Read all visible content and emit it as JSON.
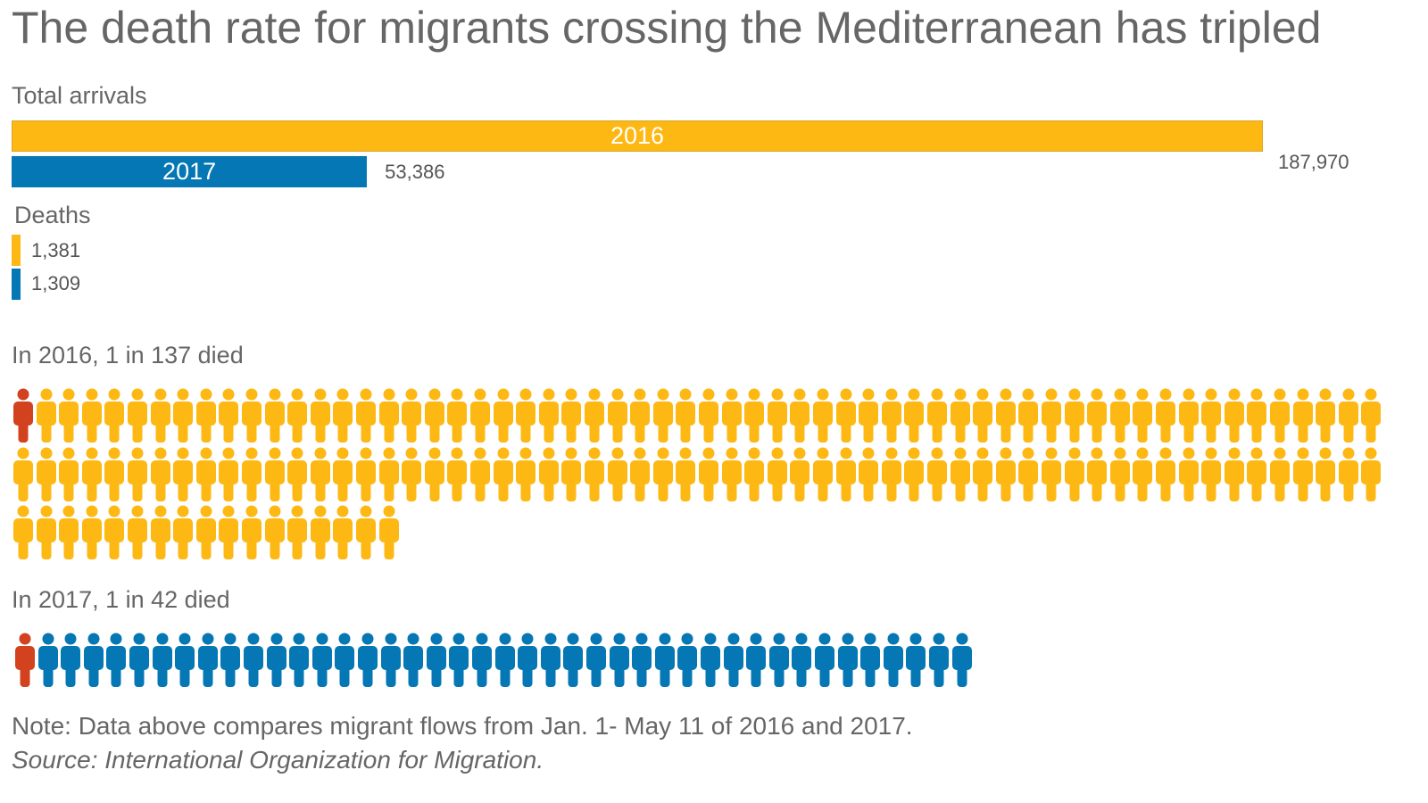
{
  "chart_data": {
    "type": "bar",
    "title": "The death rate for migrants crossing the Mediterranean has tripled",
    "colors": {
      "2016": "#FDB813",
      "2017": "#0577B4",
      "death": "#D2421F"
    },
    "arrivals": {
      "label": "Total arrivals",
      "series": [
        {
          "name": "2016",
          "value": 187970,
          "value_label": "187,970"
        },
        {
          "name": "2017",
          "value": 53386,
          "value_label": "53,386"
        }
      ]
    },
    "deaths": {
      "label": "Deaths",
      "series": [
        {
          "name": "2016",
          "value": 1381,
          "value_label": "1,381"
        },
        {
          "name": "2017",
          "value": 1309,
          "value_label": "1,309"
        }
      ]
    },
    "pictograms": [
      {
        "label": "In 2016, 1 in 137 died",
        "total": 137,
        "died": 1,
        "year": "2016"
      },
      {
        "label": "In 2017, 1 in 42 died",
        "total": 42,
        "died": 1,
        "year": "2017"
      }
    ],
    "note": "Note: Data above compares migrant flows from Jan. 1- May 11 of 2016 and 2017.",
    "source": "Source: International Organization for Migration."
  }
}
